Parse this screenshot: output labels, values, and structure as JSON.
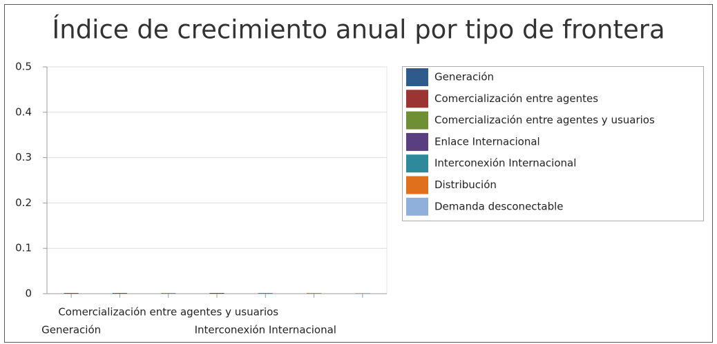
{
  "chart_data": {
    "type": "bar",
    "title": "Índice de crecimiento anual por tipo de frontera",
    "categories": [
      "Generación",
      null,
      "Comercialización entre agentes y usuarios",
      null,
      "Interconexión Internacional",
      null,
      null
    ],
    "series": [
      {
        "name": "Generación",
        "color": "#2f5a8c",
        "values": [
          0,
          null,
          null,
          null,
          null,
          null,
          null
        ]
      },
      {
        "name": "Comercialización entre agentes",
        "color": "#9b3432",
        "values": [
          null,
          0,
          null,
          null,
          null,
          null,
          null
        ]
      },
      {
        "name": "Comercialización entre agentes y usuarios",
        "color": "#6f8f35",
        "values": [
          null,
          null,
          0,
          null,
          null,
          null,
          null
        ]
      },
      {
        "name": "Enlace Internacional",
        "color": "#5a3f80",
        "values": [
          null,
          null,
          null,
          0,
          null,
          null,
          null
        ]
      },
      {
        "name": "Interconexión Internacional",
        "color": "#2e8a9b",
        "values": [
          null,
          null,
          null,
          null,
          0,
          null,
          null
        ]
      },
      {
        "name": "Distribución",
        "color": "#e0701c",
        "values": [
          null,
          null,
          null,
          null,
          null,
          0,
          null
        ]
      },
      {
        "name": "Demanda desconectable",
        "color": "#8fb0da",
        "values": [
          null,
          null,
          null,
          null,
          null,
          null,
          0
        ]
      }
    ],
    "ylim": [
      0,
      0.5
    ],
    "yticks": [
      0,
      0.1,
      0.2,
      0.3,
      0.4,
      0.5
    ],
    "grid": true,
    "legend": "right"
  }
}
